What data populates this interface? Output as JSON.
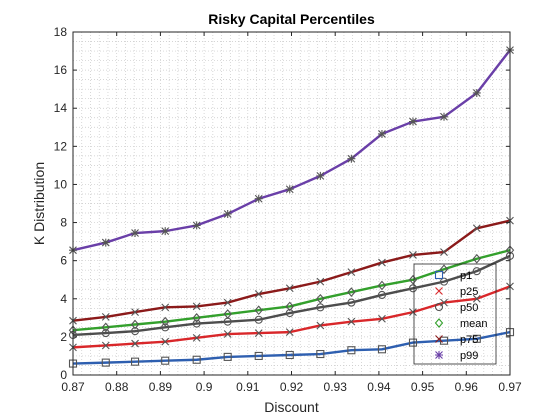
{
  "chart_data": {
    "type": "line",
    "title": "Risky Capital Percentiles",
    "xlabel": "Discount",
    "ylabel": "K Distribution",
    "xlim": [
      0.87,
      0.97
    ],
    "ylim": [
      0,
      18
    ],
    "xticks": [
      "0.87",
      "0.88",
      "0.89",
      "0.9",
      "0.91",
      "0.92",
      "0.93",
      "0.94",
      "0.95",
      "0.96",
      "0.97"
    ],
    "yticks": [
      "0",
      "2",
      "4",
      "6",
      "8",
      "10",
      "12",
      "14",
      "16",
      "18"
    ],
    "grid": "minor-dotted",
    "legend_position": "bottom-right",
    "x": [
      0.87,
      0.8775,
      0.8842,
      0.8911,
      0.8983,
      0.9054,
      0.9125,
      0.9196,
      0.9266,
      0.9337,
      0.9407,
      0.9478,
      0.9549,
      0.9624,
      0.97
    ],
    "series": [
      {
        "name": "p1",
        "color": "#2e5fb0",
        "marker": "square",
        "values": [
          0.6,
          0.65,
          0.7,
          0.75,
          0.8,
          0.95,
          1.0,
          1.05,
          1.1,
          1.3,
          1.35,
          1.7,
          1.8,
          1.9,
          2.25
        ]
      },
      {
        "name": "p25",
        "color": "#d9272a",
        "marker": "x",
        "values": [
          1.45,
          1.55,
          1.65,
          1.75,
          1.95,
          2.15,
          2.2,
          2.25,
          2.6,
          2.8,
          2.95,
          3.3,
          3.8,
          4.0,
          4.65
        ]
      },
      {
        "name": "p50",
        "color": "#4d4d4d",
        "marker": "circle",
        "values": [
          2.1,
          2.2,
          2.3,
          2.5,
          2.7,
          2.8,
          2.9,
          3.25,
          3.55,
          3.8,
          4.2,
          4.55,
          4.9,
          5.45,
          6.25
        ]
      },
      {
        "name": "mean",
        "color": "#33a02c",
        "marker": "diamond",
        "values": [
          2.35,
          2.5,
          2.65,
          2.8,
          3.0,
          3.2,
          3.4,
          3.6,
          4.0,
          4.35,
          4.7,
          5.0,
          5.55,
          6.1,
          6.55
        ]
      },
      {
        "name": "p75",
        "color": "#8b1a1a",
        "marker": "x",
        "values": [
          2.85,
          3.05,
          3.3,
          3.55,
          3.6,
          3.8,
          4.25,
          4.55,
          4.9,
          5.4,
          5.9,
          6.3,
          6.45,
          7.7,
          8.1
        ]
      },
      {
        "name": "p99",
        "color": "#6a3fa8",
        "marker": "star",
        "values": [
          6.55,
          6.95,
          7.45,
          7.55,
          7.85,
          8.45,
          9.25,
          9.75,
          10.45,
          11.35,
          12.65,
          13.3,
          13.55,
          14.8,
          17.05
        ]
      }
    ]
  }
}
